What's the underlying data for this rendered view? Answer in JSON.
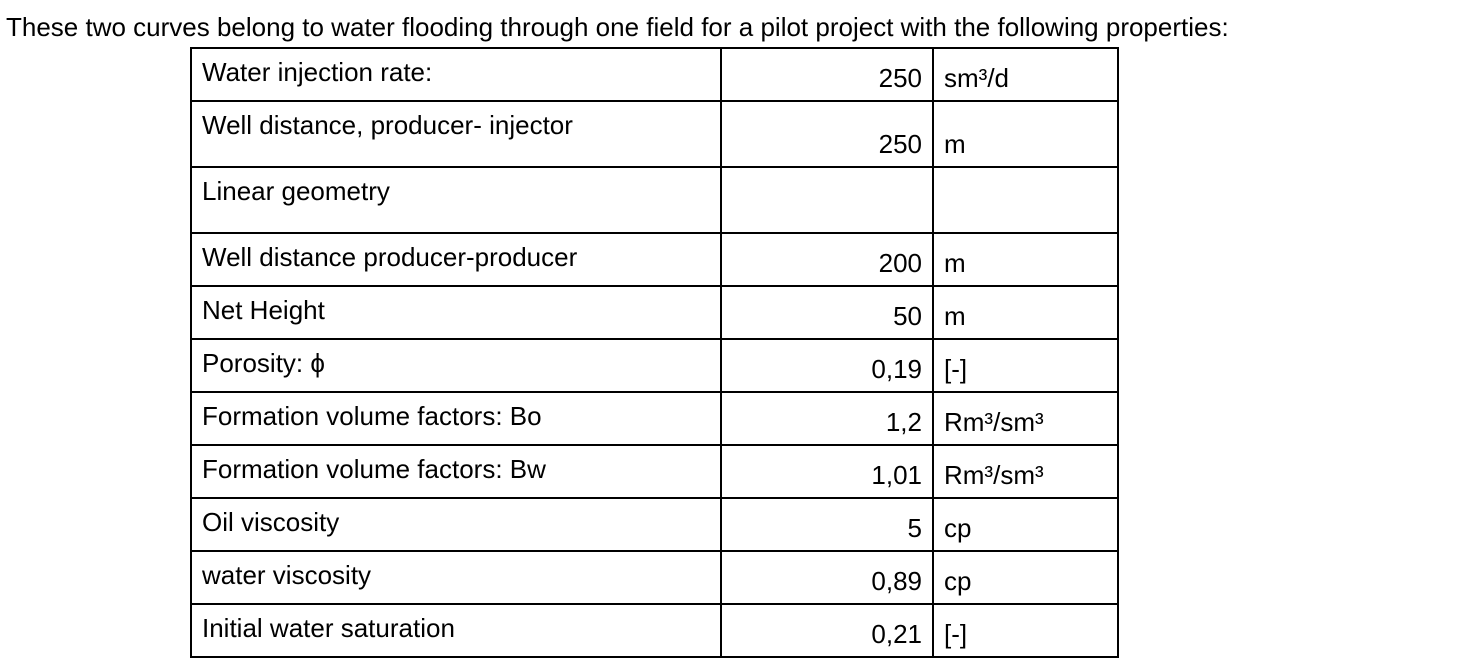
{
  "intro": "These two curves belong to water flooding through one field for a pilot project with the following properties:",
  "table": {
    "rows": [
      {
        "label": "Water injection rate:",
        "value": "250",
        "unit": "sm³/d"
      },
      {
        "label": "Well distance, producer- injector",
        "value": "250",
        "unit": "m"
      },
      {
        "label": "Linear geometry"
      },
      {
        "label": "Well distance producer-producer",
        "value": "200",
        "unit": "m"
      },
      {
        "label": "Net Height",
        "value": "50",
        "unit": "m"
      },
      {
        "label": "Porosity: ϕ",
        "value": "0,19",
        "unit": "[-]"
      },
      {
        "label": "Formation volume factors: Bo",
        "value": "1,2",
        "unit": "Rm³/sm³"
      },
      {
        "label": "Formation volume factors: Bw",
        "value": "1,01",
        "unit": "Rm³/sm³"
      },
      {
        "label": "Oil viscosity",
        "value": "5",
        "unit": "cp"
      },
      {
        "label": "water viscosity",
        "value": "0,89",
        "unit": "cp"
      },
      {
        "label": "Initial water saturation",
        "value": "0,21",
        "unit": "[-]"
      }
    ]
  }
}
